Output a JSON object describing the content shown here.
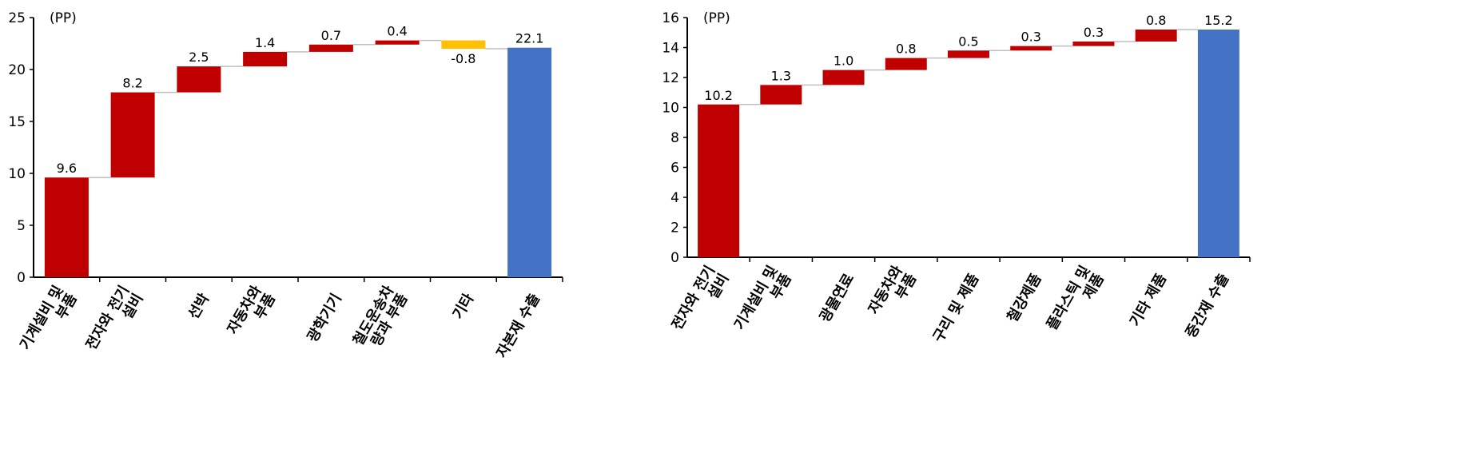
{
  "chart_data": [
    {
      "type": "bar",
      "subtype": "waterfall",
      "unit_label": "(PP)",
      "categories": [
        [
          "기계설비 및",
          "부품"
        ],
        [
          "전자와 전기",
          "설비"
        ],
        [
          "선박"
        ],
        [
          "자동차와",
          "부품"
        ],
        [
          "광학기기"
        ],
        [
          "철도운송차",
          "량과 부품"
        ],
        [
          "기타"
        ],
        [
          "자본재 수출"
        ]
      ],
      "values": [
        9.6,
        8.2,
        2.5,
        1.4,
        0.7,
        0.4,
        -0.8,
        22.1
      ],
      "labels": [
        "9.6",
        "8.2",
        "2.5",
        "1.4",
        "0.7",
        "0.4",
        "-0.8",
        "22.1"
      ],
      "total_index": 7,
      "ylim": [
        0,
        25
      ],
      "yticks": [
        0,
        5,
        10,
        15,
        20,
        25
      ],
      "grid": false
    },
    {
      "type": "bar",
      "subtype": "waterfall",
      "unit_label": "(PP)",
      "categories": [
        [
          "전자와 전기",
          "설비"
        ],
        [
          "기계설비 및",
          "부품"
        ],
        [
          "광물연료"
        ],
        [
          "자동차와",
          "부품"
        ],
        [
          "구리 및 제품"
        ],
        [
          "철강제품"
        ],
        [
          "플라스틱 및",
          "제품"
        ],
        [
          "기타 제품"
        ],
        [
          "중간재 수출"
        ]
      ],
      "values": [
        10.2,
        1.3,
        1.0,
        0.8,
        0.5,
        0.3,
        0.3,
        0.8,
        15.2
      ],
      "labels": [
        "10.2",
        "1.3",
        "1.0",
        "0.8",
        "0.5",
        "0.3",
        "0.3",
        "0.8",
        "15.2"
      ],
      "total_index": 8,
      "ylim": [
        0,
        16
      ],
      "yticks": [
        0,
        2,
        4,
        6,
        8,
        10,
        12,
        14,
        16
      ],
      "grid": false
    }
  ],
  "colors": {
    "positive": "#C00000",
    "negative": "#FFC000",
    "total": "#4472C4",
    "connector": "#BFBFBF"
  }
}
